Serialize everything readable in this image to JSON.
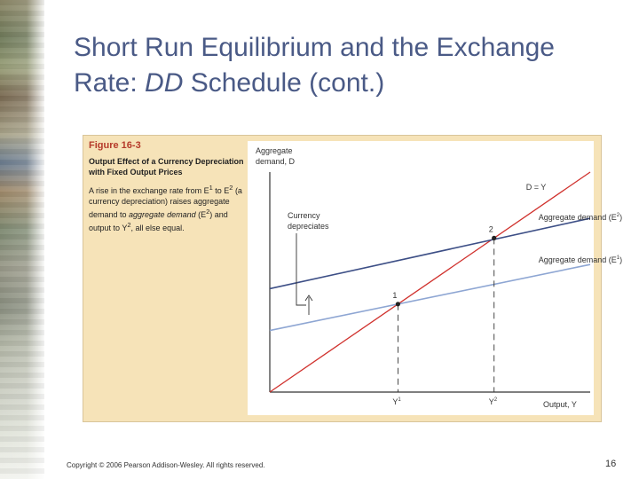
{
  "slide": {
    "title_line1": "Short Run Equilibrium and the Exchange",
    "title_line2_prefix": "Rate: ",
    "title_line2_italic": "DD",
    "title_line2_suffix": " Schedule (cont.)",
    "copyright": "Copyright © 2006 Pearson Addison-Wesley. All rights reserved.",
    "page_number": "16"
  },
  "figure": {
    "number": "Figure 16-3",
    "title": "Output Effect of a Currency Depreciation with Fixed Output Prices",
    "desc_part1": "A rise in the exchange rate from E",
    "desc_part1_sup": "1",
    "desc_part2": " to E",
    "desc_part2_sup": "2",
    "desc_part3": " (a currency depreciation) raises aggregate demand to ",
    "desc_italic": "aggregate demand",
    "desc_part4": " (E",
    "desc_part4_sup": "2",
    "desc_part5": ") and output to Y",
    "desc_part5_sup": "2",
    "desc_part6": ", all else equal."
  },
  "colors": {
    "title": "#4a5a86",
    "figure_number": "#b53a2a",
    "figure_bg": "#f6e3b8",
    "line_45deg": "#d0312d",
    "ad_e2": "#3d4f86",
    "ad_e1": "#8ea6d3",
    "axis": "#333333"
  },
  "chart_data": {
    "type": "line",
    "y_axis_label_line1": "Aggregate",
    "y_axis_label_line2": "demand, D",
    "x_axis_label": "Output, Y",
    "series": [
      {
        "name": "D = Y",
        "points": [
          [
            0,
            0
          ],
          [
            100,
            100
          ]
        ]
      },
      {
        "name": "Aggregate demand (E2)",
        "name_base": "Aggregate demand (E",
        "name_sup": "2",
        "name_end": ")",
        "points": [
          [
            0,
            47
          ],
          [
            100,
            79
          ]
        ]
      },
      {
        "name": "Aggregate demand (E1)",
        "name_base": "Aggregate demand (E",
        "name_sup": "1",
        "name_end": ")",
        "points": [
          [
            0,
            28
          ],
          [
            100,
            58
          ]
        ]
      }
    ],
    "equilibria": [
      {
        "label": "1",
        "x": 40,
        "y": 40
      },
      {
        "label": "2",
        "x": 70,
        "y": 70
      }
    ],
    "x_ticks": [
      {
        "x": 40,
        "base": "Y",
        "sup": "1"
      },
      {
        "x": 70,
        "base": "Y",
        "sup": "2"
      }
    ],
    "annotation_line1": "Currency",
    "annotation_line2": "depreciates"
  }
}
